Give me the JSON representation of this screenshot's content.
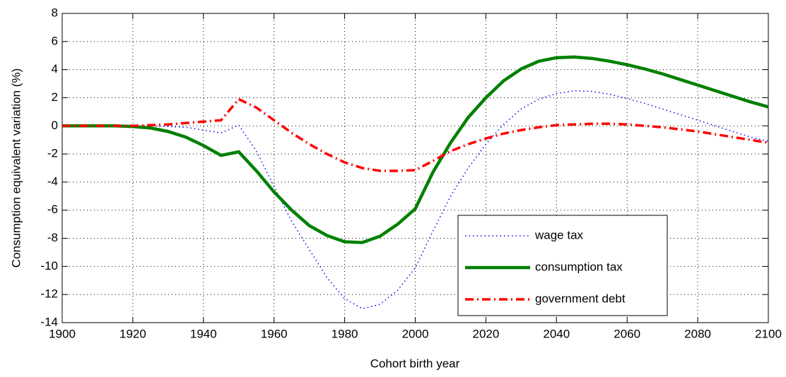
{
  "chart_data": {
    "type": "line",
    "xlabel": "Cohort birth year",
    "ylabel": "Consumption equivalent variation (%)",
    "x": [
      1900,
      1905,
      1910,
      1915,
      1920,
      1925,
      1930,
      1935,
      1940,
      1945,
      1950,
      1955,
      1960,
      1965,
      1970,
      1975,
      1980,
      1985,
      1990,
      1995,
      2000,
      2005,
      2010,
      2015,
      2020,
      2025,
      2030,
      2035,
      2040,
      2045,
      2050,
      2055,
      2060,
      2065,
      2070,
      2075,
      2080,
      2085,
      2090,
      2095,
      2100
    ],
    "series": [
      {
        "name": "wage tax",
        "color": "#0000ff",
        "style": "dotted",
        "values": [
          0,
          0,
          0,
          0,
          0,
          0,
          -0.05,
          -0.1,
          -0.3,
          -0.5,
          0.05,
          -1.8,
          -4.3,
          -6.8,
          -8.8,
          -10.8,
          -12.3,
          -13.0,
          -12.7,
          -11.7,
          -10.1,
          -7.5,
          -5.0,
          -3.0,
          -1.3,
          0.1,
          1.2,
          1.9,
          2.3,
          2.5,
          2.45,
          2.25,
          1.95,
          1.6,
          1.2,
          0.8,
          0.4,
          0.0,
          -0.4,
          -0.8,
          -1.1
        ]
      },
      {
        "name": "consumption tax",
        "color": "#008000",
        "style": "solid",
        "values": [
          0,
          0,
          0,
          0,
          -0.05,
          -0.15,
          -0.4,
          -0.8,
          -1.4,
          -2.1,
          -1.85,
          -3.2,
          -4.7,
          -6.0,
          -7.1,
          -7.8,
          -8.25,
          -8.3,
          -7.85,
          -7.0,
          -5.9,
          -3.3,
          -1.2,
          0.6,
          2.0,
          3.2,
          4.05,
          4.6,
          4.85,
          4.9,
          4.8,
          4.6,
          4.35,
          4.05,
          3.7,
          3.3,
          2.9,
          2.5,
          2.1,
          1.7,
          1.35
        ]
      },
      {
        "name": "government debt",
        "color": "#ff0000",
        "style": "dashdot",
        "values": [
          0,
          0,
          0,
          0,
          0,
          0.05,
          0.1,
          0.2,
          0.3,
          0.4,
          1.9,
          1.3,
          0.4,
          -0.5,
          -1.3,
          -2.0,
          -2.6,
          -3.0,
          -3.2,
          -3.2,
          -3.15,
          -2.5,
          -1.8,
          -1.3,
          -0.9,
          -0.55,
          -0.3,
          -0.1,
          0.05,
          0.1,
          0.15,
          0.15,
          0.1,
          0.0,
          -0.1,
          -0.25,
          -0.4,
          -0.6,
          -0.8,
          -1.0,
          -1.2
        ]
      }
    ],
    "xlim": [
      1900,
      2100
    ],
    "xticks": [
      1900,
      1920,
      1940,
      1960,
      1980,
      2000,
      2020,
      2040,
      2060,
      2080,
      2100
    ],
    "ylim": [
      -14,
      8
    ],
    "yticks": [
      -14,
      -12,
      -10,
      -8,
      -6,
      -4,
      -2,
      0,
      2,
      4,
      6,
      8
    ],
    "grid": true,
    "legend": "lower right"
  }
}
